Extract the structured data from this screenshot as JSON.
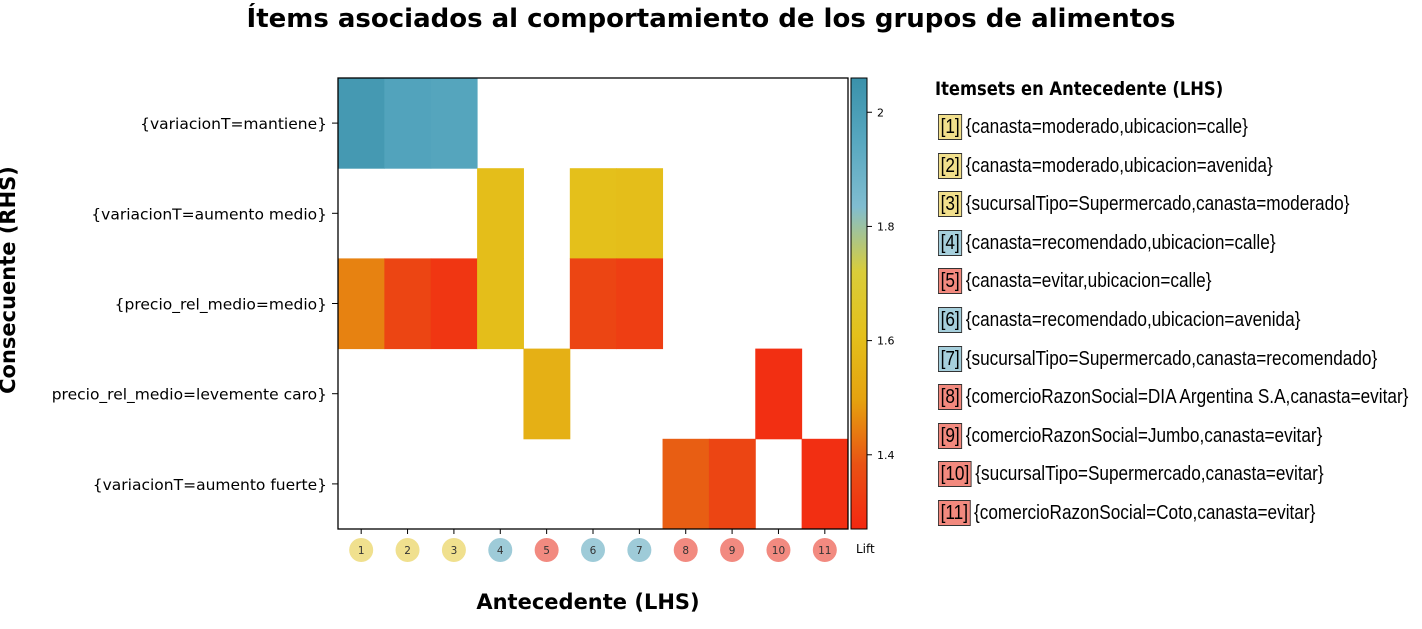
{
  "chart_data": {
    "type": "heatmap",
    "title": "Ítems asociados al comportamiento de los grupos de alimentos",
    "xlabel": "Antecedente (LHS)",
    "ylabel": "Consecuente (RHS)",
    "x_categories": [
      "1",
      "2",
      "3",
      "4",
      "5",
      "6",
      "7",
      "8",
      "9",
      "10",
      "11"
    ],
    "y_categories": [
      "{variacionT=mantiene}",
      "{variacionT=aumento medio}",
      "{precio_rel_medio=medio}",
      "precio_rel_medio=levemente caro}",
      "{variacionT=aumento fuerte}"
    ],
    "cells": [
      {
        "x": 1,
        "y": 0,
        "value": 2.02
      },
      {
        "x": 2,
        "y": 0,
        "value": 1.97
      },
      {
        "x": 3,
        "y": 0,
        "value": 1.96
      },
      {
        "x": 4,
        "y": 1,
        "value": 1.6
      },
      {
        "x": 6,
        "y": 1,
        "value": 1.61
      },
      {
        "x": 7,
        "y": 1,
        "value": 1.6
      },
      {
        "x": 1,
        "y": 2,
        "value": 1.45
      },
      {
        "x": 2,
        "y": 2,
        "value": 1.35
      },
      {
        "x": 3,
        "y": 2,
        "value": 1.31
      },
      {
        "x": 4,
        "y": 2,
        "value": 1.6
      },
      {
        "x": 6,
        "y": 2,
        "value": 1.35
      },
      {
        "x": 7,
        "y": 2,
        "value": 1.33
      },
      {
        "x": 5,
        "y": 3,
        "value": 1.55
      },
      {
        "x": 10,
        "y": 3,
        "value": 1.29
      },
      {
        "x": 8,
        "y": 4,
        "value": 1.4
      },
      {
        "x": 9,
        "y": 4,
        "value": 1.35
      },
      {
        "x": 11,
        "y": 4,
        "value": 1.29
      }
    ],
    "colorbar": {
      "label": "Lift",
      "ticks": [
        "2",
        "1.8",
        "1.6",
        "1.4"
      ],
      "tick_values": [
        2.0,
        1.8,
        1.6,
        1.4
      ],
      "range": [
        1.27,
        2.06
      ],
      "colors": [
        "#f42711",
        "#e95214",
        "#e5a20f",
        "#e4c01b",
        "#d9cd3a",
        "#80bdd0",
        "#58a8c0",
        "#3a91aa"
      ]
    },
    "legend_title": "Itemsets en Antecedente (LHS)",
    "itemsets": [
      {
        "num": "[1]",
        "label": "{canasta=moderado,ubicacion=calle}",
        "group": "moderado"
      },
      {
        "num": "[2]",
        "label": "{canasta=moderado,ubicacion=avenida}",
        "group": "moderado"
      },
      {
        "num": "[3]",
        "label": "{sucursalTipo=Supermercado,canasta=moderado}",
        "group": "moderado"
      },
      {
        "num": "[4]",
        "label": "{canasta=recomendado,ubicacion=calle}",
        "group": "recomendado"
      },
      {
        "num": "[5]",
        "label": "{canasta=evitar,ubicacion=calle}",
        "group": "evitar"
      },
      {
        "num": "[6]",
        "label": "{canasta=recomendado,ubicacion=avenida}",
        "group": "recomendado"
      },
      {
        "num": "[7]",
        "label": "{sucursalTipo=Supermercado,canasta=recomendado}",
        "group": "recomendado"
      },
      {
        "num": "[8]",
        "label": "{comercioRazonSocial=DIA Argentina S.A,canasta=evitar}",
        "group": "evitar"
      },
      {
        "num": "[9]",
        "label": "{comercioRazonSocial=Jumbo,canasta=evitar}",
        "group": "evitar"
      },
      {
        "num": "[10]",
        "label": "{sucursalTipo=Supermercado,canasta=evitar}",
        "group": "evitar"
      },
      {
        "num": "[11]",
        "label": "{comercioRazonSocial=Coto,canasta=evitar}",
        "group": "evitar"
      }
    ],
    "group_colors": {
      "moderado": "#f0e08e",
      "recomendado": "#9ecbd8",
      "evitar": "#f28a80"
    },
    "legend_box_colors": {
      "moderado": "#f1df8c",
      "recomendado": "#a6cfdc",
      "evitar": "#f2897e"
    }
  }
}
